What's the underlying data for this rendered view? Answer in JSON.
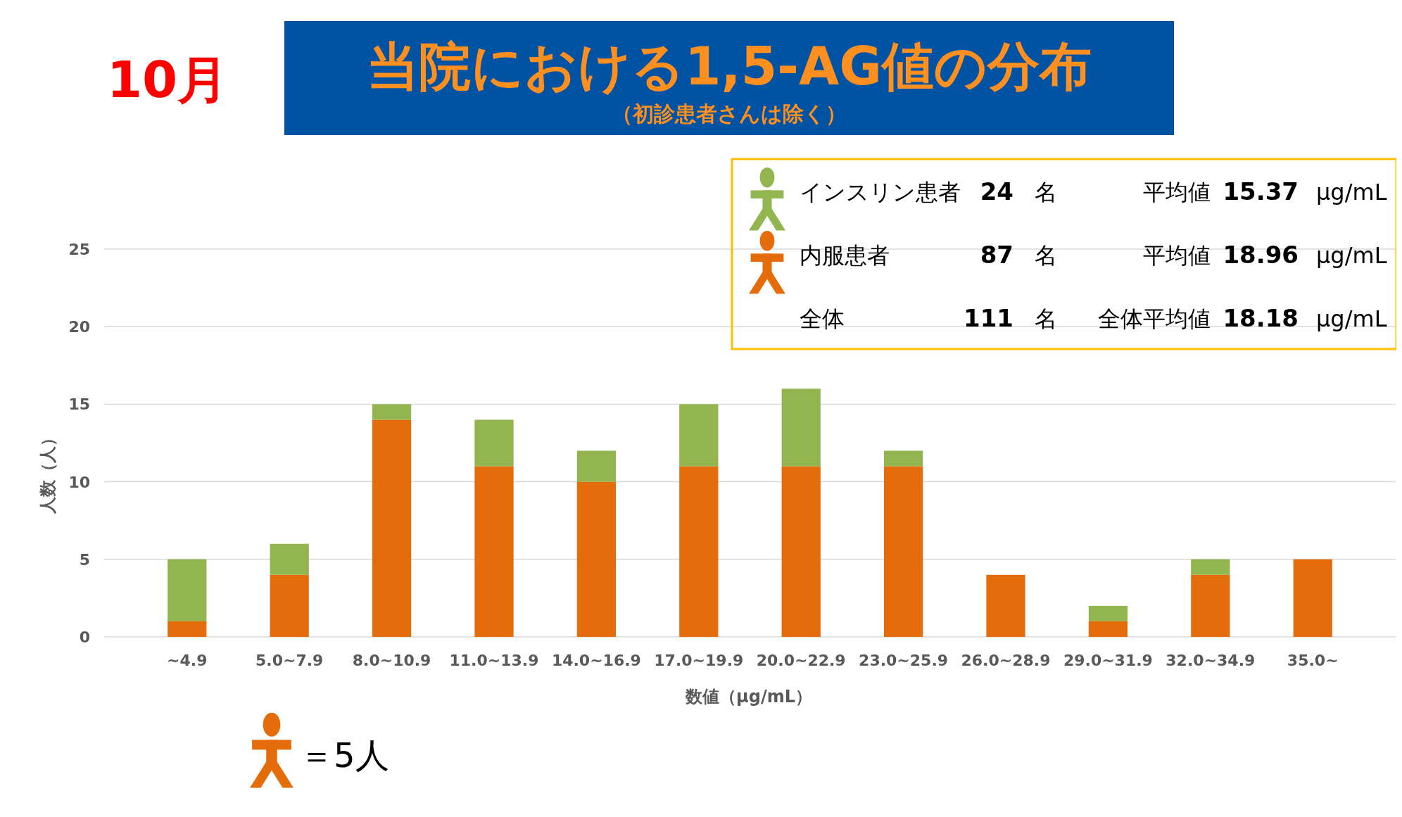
{
  "chart_data": {
    "type": "bar",
    "title": "当院における1,5-AG値の分布",
    "subtitle": "（初診患者さんは除く）",
    "xlabel": "数値（μg/mL）",
    "ylabel": "人数（人）",
    "categories": [
      "~4.9",
      "5.0~7.9",
      "8.0~10.9",
      "11.0~13.9",
      "14.0~16.9",
      "17.0~19.9",
      "20.0~22.9",
      "23.0~25.9",
      "26.0~28.9",
      "29.0~31.9",
      "32.0~34.9",
      "35.0~"
    ],
    "stacked": true,
    "series": [
      {
        "name": "内服患者",
        "color": "#e46c0a",
        "values": [
          1,
          4,
          14,
          11,
          10,
          11,
          11,
          11,
          4,
          1,
          4,
          5
        ]
      },
      {
        "name": "インスリン患者",
        "color": "#92b550",
        "values": [
          4,
          2,
          1,
          3,
          2,
          4,
          5,
          1,
          0,
          1,
          1,
          0
        ]
      }
    ],
    "ylim": [
      0,
      25
    ],
    "yticks": [
      0,
      5,
      10,
      15,
      20,
      25
    ],
    "grid": "y",
    "legend": "top right",
    "annotations": [
      "10月",
      "24 名",
      "平均値 15.37 μg/mL",
      "87 名",
      "平均値 18.96 μg/mL",
      "全体 111 名",
      "全体平均値 18.18 μg/mL",
      "＝5人"
    ]
  }
}
